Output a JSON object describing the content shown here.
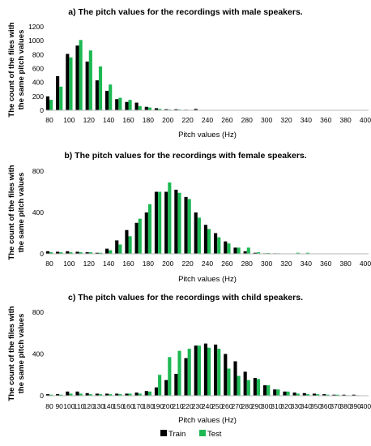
{
  "chart_data": [
    {
      "type": "bar",
      "title": "a) The pitch values for the recordings with male speakers.",
      "xlabel": "Pitch values (Hz)",
      "ylabel": [
        "The count of the files with",
        "the same pitch values"
      ],
      "ylim": [
        0,
        1200
      ],
      "yticks": [
        "0",
        "200",
        "400",
        "600",
        "800",
        "1000",
        "1200"
      ],
      "categories": [
        "80",
        "90",
        "100",
        "110",
        "120",
        "130",
        "140",
        "150",
        "160",
        "170",
        "180",
        "190",
        "200",
        "210",
        "220",
        "230",
        "240",
        "250",
        "260",
        "270",
        "280",
        "290",
        "300",
        "310",
        "320",
        "330",
        "340",
        "350",
        "360",
        "370",
        "380",
        "390",
        "400"
      ],
      "xtick_labels": [
        "80",
        "100",
        "120",
        "140",
        "160",
        "180",
        "200",
        "220",
        "240",
        "260",
        "280",
        "300",
        "320",
        "340",
        "360",
        "380",
        "400"
      ],
      "series": [
        {
          "name": "Train",
          "values": [
            200,
            490,
            810,
            930,
            700,
            430,
            280,
            160,
            120,
            110,
            50,
            30,
            15,
            15,
            8,
            20,
            5,
            3,
            2,
            2,
            2,
            1,
            1,
            1,
            0,
            0,
            0,
            0,
            0,
            0,
            0,
            0,
            0
          ]
        },
        {
          "name": "Test",
          "values": [
            150,
            340,
            760,
            1010,
            860,
            630,
            370,
            180,
            150,
            60,
            40,
            20,
            10,
            10,
            5,
            5,
            2,
            2,
            1,
            1,
            1,
            1,
            0,
            0,
            0,
            0,
            0,
            0,
            0,
            0,
            0,
            0,
            0
          ]
        }
      ]
    },
    {
      "type": "bar",
      "title": "b) The pitch values for the recordings with female speakers.",
      "xlabel": "Pitch values (Hz)",
      "ylabel": [
        "The count of the files with",
        "the same pitch values"
      ],
      "ylim": [
        0,
        800
      ],
      "yticks": [
        "0",
        "400",
        "800"
      ],
      "categories": [
        "80",
        "90",
        "100",
        "110",
        "120",
        "130",
        "140",
        "150",
        "160",
        "170",
        "180",
        "190",
        "200",
        "210",
        "220",
        "230",
        "240",
        "250",
        "260",
        "270",
        "280",
        "290",
        "300",
        "310",
        "320",
        "330",
        "340",
        "350",
        "360",
        "370",
        "380",
        "390",
        "400"
      ],
      "xtick_labels": [
        "80",
        "100",
        "120",
        "140",
        "160",
        "180",
        "200",
        "220",
        "240",
        "260",
        "280",
        "300",
        "320",
        "340",
        "360",
        "380",
        "400"
      ],
      "series": [
        {
          "name": "Train",
          "values": [
            25,
            20,
            25,
            20,
            15,
            10,
            50,
            130,
            230,
            300,
            400,
            600,
            600,
            620,
            550,
            400,
            280,
            200,
            120,
            60,
            25,
            10,
            5,
            5,
            2,
            3,
            2,
            0,
            0,
            0,
            0,
            0,
            0
          ]
        },
        {
          "name": "Test",
          "values": [
            15,
            15,
            15,
            15,
            15,
            10,
            35,
            90,
            170,
            340,
            480,
            600,
            690,
            590,
            530,
            350,
            240,
            160,
            100,
            60,
            60,
            15,
            8,
            5,
            3,
            10,
            10,
            2,
            2,
            0,
            0,
            0,
            0
          ]
        }
      ]
    },
    {
      "type": "bar",
      "title": "c) The pitch values for the recordings with child speakers.",
      "xlabel": "Pitch values (Hz)",
      "ylabel": [
        "The count of the files with",
        "the same pitch values"
      ],
      "ylim": [
        0,
        800
      ],
      "yticks": [
        "0",
        "400",
        "800"
      ],
      "categories": [
        "80",
        "90",
        "100",
        "110",
        "120",
        "130",
        "140",
        "150",
        "160",
        "170",
        "180",
        "190",
        "200",
        "210",
        "220",
        "230",
        "240",
        "250",
        "260",
        "270",
        "280",
        "290",
        "300",
        "310",
        "320",
        "330",
        "340",
        "350",
        "360",
        "370",
        "380",
        "390",
        "400"
      ],
      "xtick_labels": [
        "80",
        "90",
        "100",
        "110",
        "120",
        "130",
        "140",
        "150",
        "160",
        "170",
        "180",
        "190",
        "200",
        "210",
        "220",
        "230",
        "240",
        "250",
        "260",
        "270",
        "280",
        "290",
        "300",
        "310",
        "320",
        "330",
        "340",
        "350",
        "360",
        "370",
        "380",
        "390",
        "400"
      ],
      "series": [
        {
          "name": "Train",
          "values": [
            15,
            15,
            40,
            40,
            25,
            20,
            20,
            20,
            20,
            30,
            45,
            80,
            150,
            210,
            360,
            480,
            500,
            490,
            400,
            330,
            230,
            170,
            100,
            60,
            40,
            30,
            25,
            20,
            15,
            10,
            10,
            10,
            0
          ]
        },
        {
          "name": "Test",
          "values": [
            10,
            10,
            20,
            20,
            15,
            15,
            15,
            15,
            20,
            20,
            40,
            200,
            370,
            430,
            450,
            480,
            460,
            450,
            260,
            190,
            150,
            160,
            100,
            60,
            40,
            20,
            15,
            15,
            10,
            10,
            5,
            5,
            0
          ]
        }
      ]
    }
  ],
  "legend": {
    "position": "bottom",
    "items": [
      {
        "label": "Train",
        "color": "#000000"
      },
      {
        "label": "Test",
        "color": "#1db954"
      }
    ]
  },
  "colors": {
    "train": "#000000",
    "test": "#1db954",
    "axis": "#b8b8b8"
  }
}
